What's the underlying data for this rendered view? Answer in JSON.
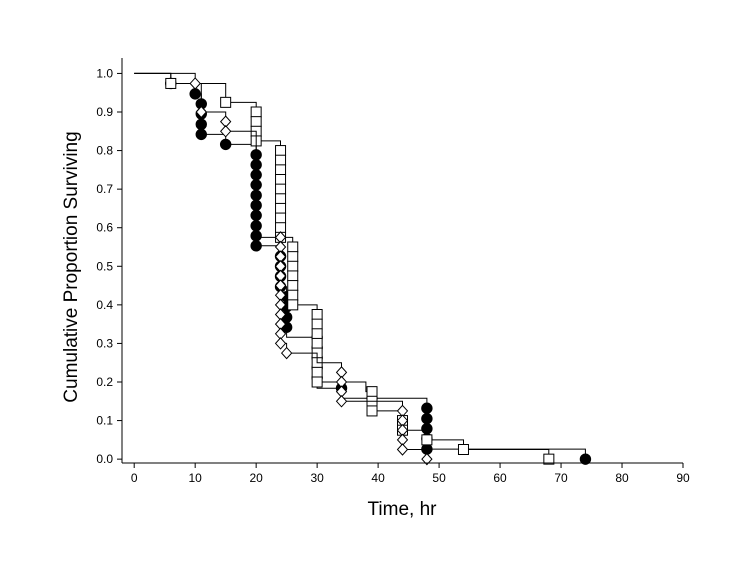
{
  "chart_data": {
    "type": "scatter",
    "subtype": "kaplan-meier step survival curves",
    "title": "",
    "xlabel": "Time, hr",
    "ylabel": "Cumulative Proportion Surviving",
    "xlim": [
      -2,
      90
    ],
    "ylim": [
      -0.01,
      1.04
    ],
    "xticks": [
      0,
      10,
      20,
      30,
      40,
      50,
      60,
      70,
      80,
      90
    ],
    "yticks": [
      0.0,
      0.1,
      0.2,
      0.3,
      0.4,
      0.5,
      0.6,
      0.7,
      0.8,
      0.9,
      1.0
    ],
    "ytick_format": "1dp",
    "grid": false,
    "legend": "none",
    "series": [
      {
        "marker": "filled-circle",
        "color": "#000000",
        "step_line": [
          [
            0,
            1.0
          ],
          [
            6,
            1.0
          ],
          [
            6,
            0.974
          ],
          [
            10,
            0.974
          ],
          [
            10,
            0.947
          ],
          [
            11,
            0.947
          ],
          [
            11,
            0.842
          ],
          [
            15,
            0.842
          ],
          [
            15,
            0.816
          ],
          [
            20,
            0.816
          ],
          [
            20,
            0.553
          ],
          [
            24,
            0.553
          ],
          [
            24,
            0.447
          ],
          [
            25,
            0.447
          ],
          [
            25,
            0.316
          ],
          [
            30,
            0.316
          ],
          [
            30,
            0.184
          ],
          [
            34,
            0.184
          ],
          [
            34,
            0.158
          ],
          [
            48,
            0.158
          ],
          [
            48,
            0.026
          ],
          [
            74,
            0.026
          ],
          [
            74,
            0.0
          ]
        ],
        "points": [
          [
            6,
            0.974
          ],
          [
            10,
            0.947
          ],
          [
            11,
            0.921
          ],
          [
            11,
            0.895
          ],
          [
            11,
            0.868
          ],
          [
            11,
            0.842
          ],
          [
            15,
            0.816
          ],
          [
            20,
            0.789
          ],
          [
            20,
            0.763
          ],
          [
            20,
            0.737
          ],
          [
            20,
            0.711
          ],
          [
            20,
            0.684
          ],
          [
            20,
            0.658
          ],
          [
            20,
            0.632
          ],
          [
            20,
            0.605
          ],
          [
            20,
            0.579
          ],
          [
            20,
            0.553
          ],
          [
            24,
            0.526
          ],
          [
            24,
            0.5
          ],
          [
            24,
            0.474
          ],
          [
            24,
            0.447
          ],
          [
            25,
            0.421
          ],
          [
            25,
            0.395
          ],
          [
            25,
            0.368
          ],
          [
            25,
            0.342
          ],
          [
            30,
            0.316
          ],
          [
            30,
            0.289
          ],
          [
            30,
            0.263
          ],
          [
            30,
            0.237
          ],
          [
            30,
            0.211
          ],
          [
            34,
            0.184
          ],
          [
            39,
            0.158
          ],
          [
            48,
            0.132
          ],
          [
            48,
            0.105
          ],
          [
            48,
            0.079
          ],
          [
            48,
            0.053
          ],
          [
            48,
            0.026
          ],
          [
            74,
            0.0
          ]
        ]
      },
      {
        "marker": "open-square",
        "color": "#000000",
        "step_line": [
          [
            0,
            1.0
          ],
          [
            6,
            1.0
          ],
          [
            6,
            0.974
          ],
          [
            15,
            0.974
          ],
          [
            15,
            0.925
          ],
          [
            20,
            0.925
          ],
          [
            20,
            0.825
          ],
          [
            24,
            0.825
          ],
          [
            24,
            0.575
          ],
          [
            26,
            0.575
          ],
          [
            26,
            0.4
          ],
          [
            30,
            0.4
          ],
          [
            30,
            0.2
          ],
          [
            32,
            0.2
          ],
          [
            32,
            0.2
          ],
          [
            38,
            0.2
          ],
          [
            38,
            0.175
          ],
          [
            39,
            0.175
          ],
          [
            39,
            0.125
          ],
          [
            44,
            0.125
          ],
          [
            44,
            0.075
          ],
          [
            48,
            0.075
          ],
          [
            48,
            0.05
          ],
          [
            54,
            0.05
          ],
          [
            54,
            0.025
          ],
          [
            68,
            0.025
          ],
          [
            68,
            0.0
          ]
        ],
        "points": [
          [
            6,
            0.974
          ],
          [
            15,
            0.925
          ],
          [
            20,
            0.9
          ],
          [
            20,
            0.875
          ],
          [
            20,
            0.85
          ],
          [
            20,
            0.825
          ],
          [
            24,
            0.8
          ],
          [
            24,
            0.775
          ],
          [
            24,
            0.75
          ],
          [
            24,
            0.725
          ],
          [
            24,
            0.7
          ],
          [
            24,
            0.675
          ],
          [
            24,
            0.65
          ],
          [
            24,
            0.625
          ],
          [
            24,
            0.6
          ],
          [
            24,
            0.575
          ],
          [
            26,
            0.55
          ],
          [
            26,
            0.525
          ],
          [
            26,
            0.5
          ],
          [
            26,
            0.475
          ],
          [
            26,
            0.45
          ],
          [
            26,
            0.425
          ],
          [
            26,
            0.4
          ],
          [
            30,
            0.375
          ],
          [
            30,
            0.35
          ],
          [
            30,
            0.325
          ],
          [
            30,
            0.3
          ],
          [
            30,
            0.275
          ],
          [
            30,
            0.25
          ],
          [
            30,
            0.225
          ],
          [
            30,
            0.2
          ],
          [
            39,
            0.175
          ],
          [
            39,
            0.15
          ],
          [
            39,
            0.125
          ],
          [
            44,
            0.1
          ],
          [
            44,
            0.075
          ],
          [
            48,
            0.05
          ],
          [
            54,
            0.025
          ],
          [
            68,
            0.0
          ]
        ]
      },
      {
        "marker": "open-diamond",
        "color": "#000000",
        "step_line": [
          [
            0,
            1.0
          ],
          [
            10,
            1.0
          ],
          [
            10,
            0.974
          ],
          [
            11,
            0.974
          ],
          [
            11,
            0.9
          ],
          [
            15,
            0.9
          ],
          [
            15,
            0.85
          ],
          [
            20,
            0.85
          ],
          [
            20,
            0.575
          ],
          [
            24,
            0.575
          ],
          [
            24,
            0.3
          ],
          [
            25,
            0.3
          ],
          [
            25,
            0.275
          ],
          [
            30,
            0.275
          ],
          [
            30,
            0.25
          ],
          [
            34,
            0.25
          ],
          [
            34,
            0.15
          ],
          [
            44,
            0.15
          ],
          [
            44,
            0.025
          ],
          [
            48,
            0.025
          ],
          [
            48,
            0.0
          ]
        ],
        "points": [
          [
            10,
            0.974
          ],
          [
            11,
            0.9
          ],
          [
            15,
            0.875
          ],
          [
            15,
            0.85
          ],
          [
            24,
            0.575
          ],
          [
            24,
            0.55
          ],
          [
            24,
            0.525
          ],
          [
            24,
            0.5
          ],
          [
            24,
            0.475
          ],
          [
            24,
            0.45
          ],
          [
            24,
            0.425
          ],
          [
            24,
            0.4
          ],
          [
            24,
            0.375
          ],
          [
            24,
            0.35
          ],
          [
            24,
            0.325
          ],
          [
            24,
            0.3
          ],
          [
            25,
            0.275
          ],
          [
            34,
            0.225
          ],
          [
            34,
            0.2
          ],
          [
            34,
            0.175
          ],
          [
            34,
            0.15
          ],
          [
            44,
            0.125
          ],
          [
            44,
            0.1
          ],
          [
            44,
            0.075
          ],
          [
            44,
            0.05
          ],
          [
            44,
            0.025
          ],
          [
            48,
            0.0
          ]
        ]
      }
    ]
  }
}
